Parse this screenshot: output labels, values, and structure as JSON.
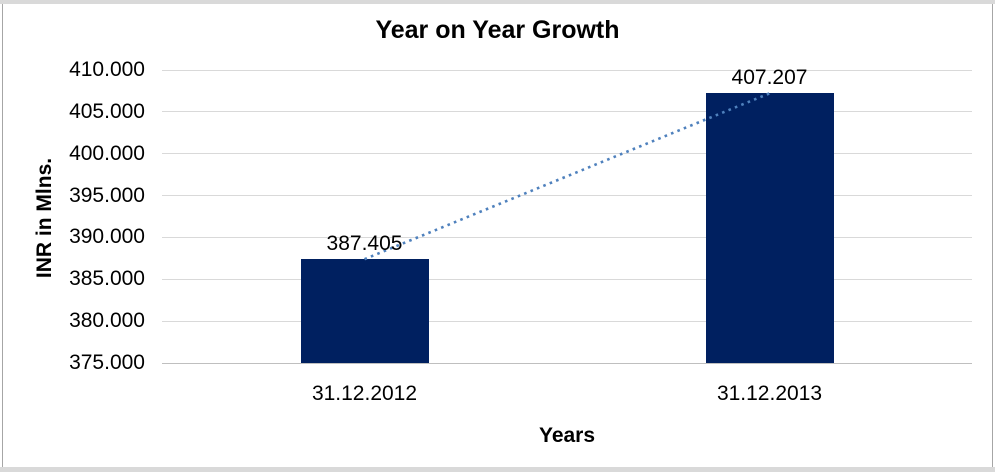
{
  "chart_data": {
    "type": "bar",
    "title": "Year on Year Growth",
    "xlabel": "Years",
    "ylabel": "INR in Mlns.",
    "categories": [
      "31.12.2012",
      "31.12.2013"
    ],
    "values": [
      387.405,
      407.207
    ],
    "value_labels": [
      "387.405",
      "407.207"
    ],
    "ylim": [
      375,
      410
    ],
    "yticks": [
      {
        "value": 375,
        "label": "375.000"
      },
      {
        "value": 380,
        "label": "380.000"
      },
      {
        "value": 385,
        "label": "385.000"
      },
      {
        "value": 390,
        "label": "390.000"
      },
      {
        "value": 395,
        "label": "395.000"
      },
      {
        "value": 400,
        "label": "400.000"
      },
      {
        "value": 405,
        "label": "405.000"
      },
      {
        "value": 410,
        "label": "410.000"
      }
    ],
    "grid": true,
    "legend": "none",
    "trendline": {
      "type": "linear",
      "style": "dotted"
    },
    "colors": {
      "bar_fill": "#002060",
      "trendline": "#4f81bd",
      "gridline": "#d9d9d9",
      "axis_line": "#bfbfbf",
      "text": "#000000",
      "background": "#ffffff"
    }
  }
}
